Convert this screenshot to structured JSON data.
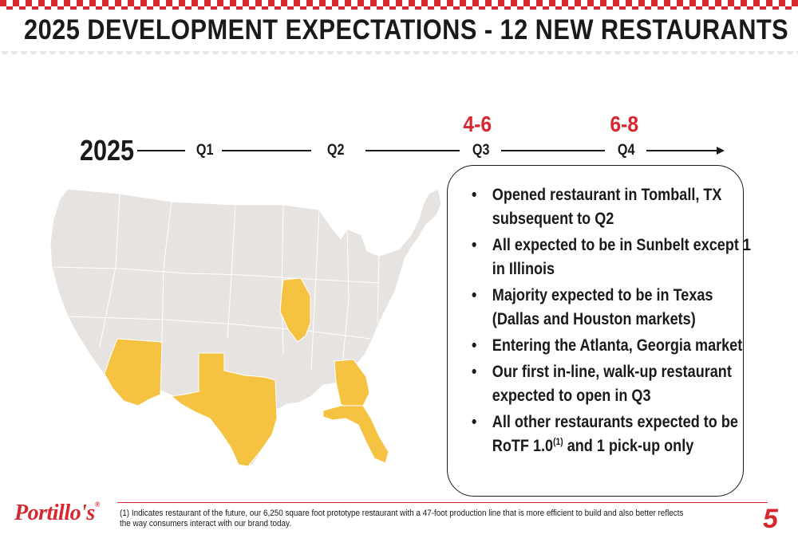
{
  "header": {
    "title": "2025 DEVELOPMENT EXPECTATIONS - 12 NEW RESTAURANTS"
  },
  "timeline": {
    "year": "2025",
    "quarters": [
      {
        "label": "Q1",
        "count": ""
      },
      {
        "label": "Q2",
        "count": ""
      },
      {
        "label": "Q3",
        "count": "4-6"
      },
      {
        "label": "Q4",
        "count": "6-8"
      }
    ]
  },
  "map": {
    "highlight_color": "#f5c242",
    "base_color": "#e6e3e0",
    "highlighted_states": [
      "Arizona",
      "Texas",
      "Illinois",
      "Georgia",
      "Florida"
    ]
  },
  "bullets": [
    {
      "text": "Opened restaurant in Tomball, TX subsequent to Q2"
    },
    {
      "text": "All expected to be in Sunbelt except 1 in Illinois"
    },
    {
      "text": "Majority expected to be in Texas (Dallas and Houston markets)"
    },
    {
      "text": "Entering the Atlanta, Georgia market"
    },
    {
      "text": "Our first in-line, walk-up restaurant expected to open in Q3"
    },
    {
      "text_before": "All other restaurants expected to be RoTF 1.0",
      "sup": "(1)",
      "text_after": " and 1 pick-up only"
    }
  ],
  "footer": {
    "note": "(1) Indicates restaurant of the future, our 6,250 square foot prototype restaurant with a 47-foot production line that is more efficient to build and also better reflects the way consumers interact with our brand today.",
    "logo": "Portillo's",
    "logo_mark": "®",
    "page_number": "5"
  },
  "colors": {
    "brand_red": "#d7282f",
    "text": "#1a1a1a"
  }
}
